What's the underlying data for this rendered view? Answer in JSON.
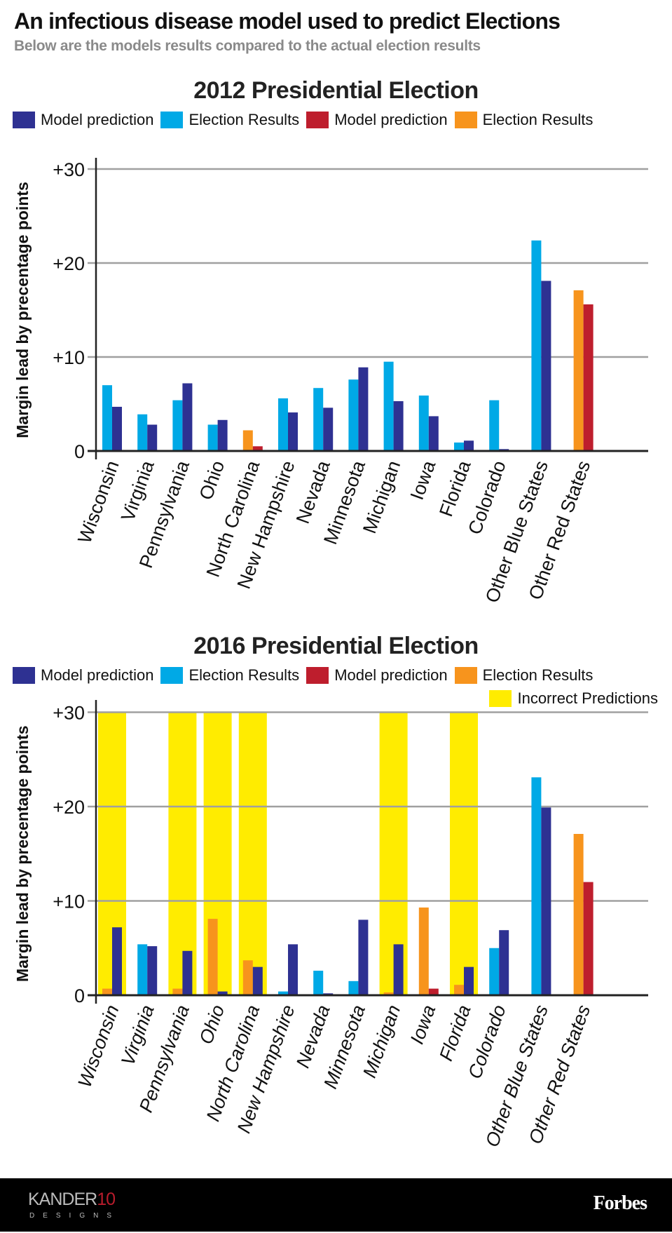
{
  "header": {
    "title": "An infectious disease model used to predict Elections",
    "subtitle": "Below are the models results compared to the actual election results"
  },
  "colors": {
    "dem_model": "#2e3192",
    "dem_result": "#00a9e6",
    "rep_model": "#be1e2d",
    "rep_result": "#f7941d",
    "incorrect": "#ffec00",
    "grid": "#a0a0a0",
    "axis": "#222222"
  },
  "legend": {
    "dem_model": "Model prediction",
    "dem_result": "Election Results",
    "rep_model": "Model prediction",
    "rep_result": "Election Results",
    "incorrect": "Incorrect Predictions"
  },
  "footer": {
    "brand_left_main": "KANDER",
    "brand_left_num": "10",
    "brand_left_sub": "DESIGNS",
    "brand_right": "Forbes"
  },
  "chart_data": [
    {
      "type": "bar",
      "title": "2012 Presidential Election",
      "ylabel": "Margin lead by precentage points",
      "xlabel": "",
      "ylim": [
        0,
        30
      ],
      "yticks": [
        "0",
        "+10",
        "+20",
        "+30"
      ],
      "ytick_values": [
        0,
        10,
        20,
        30
      ],
      "grid": true,
      "legend_position": "top",
      "categories": [
        "Wisconsin",
        "Virginia",
        "Pennsylvania",
        "Ohio",
        "North Carolina",
        "New Hampshire",
        "Nevada",
        "Minnesota",
        "Michigan",
        "Iowa",
        "Florida",
        "Colorado",
        "Other Blue States",
        "Other Red States"
      ],
      "groups": [
        {
          "party": "dem",
          "result": 7.0,
          "model": 4.7
        },
        {
          "party": "dem",
          "result": 3.9,
          "model": 2.8
        },
        {
          "party": "dem",
          "result": 5.4,
          "model": 7.2
        },
        {
          "party": "dem",
          "result": 2.8,
          "model": 3.3
        },
        {
          "party": "rep",
          "result": 2.2,
          "model": 0.5
        },
        {
          "party": "dem",
          "result": 5.6,
          "model": 4.1
        },
        {
          "party": "dem",
          "result": 6.7,
          "model": 4.6
        },
        {
          "party": "dem",
          "result": 7.6,
          "model": 8.9
        },
        {
          "party": "dem",
          "result": 9.5,
          "model": 5.3
        },
        {
          "party": "dem",
          "result": 5.9,
          "model": 3.7
        },
        {
          "party": "dem",
          "result": 0.9,
          "model": 1.1
        },
        {
          "party": "dem",
          "result": 5.4,
          "model": 0.2
        },
        {
          "party": "dem",
          "result": 22.4,
          "model": 18.1
        },
        {
          "party": "rep",
          "result": 17.1,
          "model": 15.6
        }
      ],
      "incorrect": []
    },
    {
      "type": "bar",
      "title": "2016 Presidential Election",
      "ylabel": "Margin lead by precentage points",
      "xlabel": "",
      "ylim": [
        0,
        30
      ],
      "yticks": [
        "0",
        "+10",
        "+20",
        "+30"
      ],
      "ytick_values": [
        0,
        10,
        20,
        30
      ],
      "grid": true,
      "legend_position": "top",
      "categories": [
        "Wisconsin",
        "Virginia",
        "Pennsylvania",
        "Ohio",
        "North Carolina",
        "New Hampshire",
        "Nevada",
        "Minnesota",
        "Michigan",
        "Iowa",
        "Florida",
        "Colorado",
        "Other Blue States",
        "Other Red States"
      ],
      "groups": [
        {
          "result_party": "rep",
          "result": 0.7,
          "model_party": "dem",
          "model": 7.2
        },
        {
          "result_party": "dem",
          "result": 5.4,
          "model_party": "dem",
          "model": 5.2
        },
        {
          "result_party": "rep",
          "result": 0.7,
          "model_party": "dem",
          "model": 4.7
        },
        {
          "result_party": "rep",
          "result": 8.1,
          "model_party": "dem",
          "model": 0.4
        },
        {
          "result_party": "rep",
          "result": 3.7,
          "model_party": "dem",
          "model": 3.0
        },
        {
          "result_party": "dem",
          "result": 0.4,
          "model_party": "dem",
          "model": 5.4
        },
        {
          "result_party": "dem",
          "result": 2.6,
          "model_party": "dem",
          "model": 0.2
        },
        {
          "result_party": "dem",
          "result": 1.5,
          "model_party": "dem",
          "model": 8.0
        },
        {
          "result_party": "rep",
          "result": 0.3,
          "model_party": "dem",
          "model": 5.4
        },
        {
          "result_party": "rep",
          "result": 9.3,
          "model_party": "rep",
          "model": 0.7
        },
        {
          "result_party": "rep",
          "result": 1.1,
          "model_party": "dem",
          "model": 3.0
        },
        {
          "result_party": "dem",
          "result": 5.0,
          "model_party": "dem",
          "model": 6.9
        },
        {
          "result_party": "dem",
          "result": 23.1,
          "model_party": "dem",
          "model": 19.9
        },
        {
          "result_party": "rep",
          "result": 17.1,
          "model_party": "rep",
          "model": 12.0
        }
      ],
      "incorrect": [
        "Wisconsin",
        "Pennsylvania",
        "Ohio",
        "North Carolina",
        "Michigan",
        "Florida"
      ]
    }
  ]
}
